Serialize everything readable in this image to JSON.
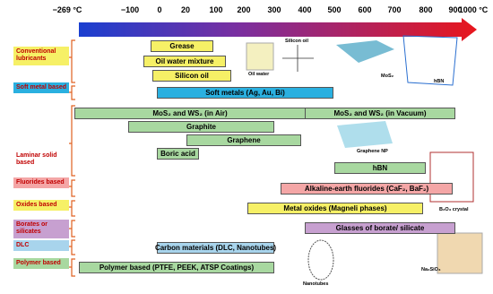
{
  "axis": {
    "ticks": [
      "−269 °C",
      "−100",
      "0",
      "20",
      "100",
      "200",
      "300",
      "400",
      "500",
      "600",
      "700",
      "800",
      "900",
      "1000 °C"
    ]
  },
  "categories": [
    "Conventional lubricants",
    "Soft metal based",
    "Laminar solid based",
    "Fluorides based",
    "Oxides based",
    "Borates or silicates",
    "DLC",
    "Polymer based"
  ],
  "bars": [
    "Grease",
    "Oil water mixture",
    "Silicon oil",
    "Soft metals (Ag, Au, Bi)",
    "MoS₂ and WS₂ (in Air)",
    "MoS₂ and WS₂ (in Vacuum)",
    "Graphite",
    "Graphene",
    "Boric acid",
    "hBN",
    "Alkaline-earth fluorides (CaF₂, BaF₂)",
    "Metal oxides (Magneli phases)",
    "Glasses of borate/ silicate",
    "Carbon materials (DLC, Nanotubes)",
    "Polymer based (PTFE, PEEK, ATSP Coatings)"
  ],
  "images": [
    "Oil water",
    "Silicon oil",
    "MoS₂",
    "hBN",
    "Graphene NP",
    "B₂O₃ crystal",
    "Nanotubes",
    "Na₂SiO₃"
  ]
}
